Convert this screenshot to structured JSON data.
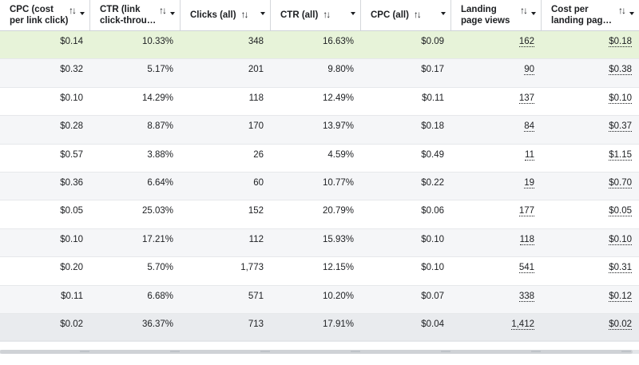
{
  "columns": [
    {
      "key": "cpc_link",
      "label": "CPC (cost per link click)",
      "width": 113,
      "dotted": false
    },
    {
      "key": "ctr_link",
      "label": "CTR (link click-throu…",
      "width": 113,
      "dotted": false
    },
    {
      "key": "clicks",
      "label": "Clicks (all)",
      "width": 113,
      "dotted": false
    },
    {
      "key": "ctr_all",
      "label": "CTR (all)",
      "width": 113,
      "dotted": false
    },
    {
      "key": "cpc_all",
      "label": "CPC (all)",
      "width": 113,
      "dotted": false
    },
    {
      "key": "lpv",
      "label": "Landing page views",
      "width": 113,
      "dotted": true
    },
    {
      "key": "cost_lpv",
      "label": "Cost per landing pag…",
      "width": 122,
      "dotted": true
    }
  ],
  "sort_icon": "sort-arrows-icon",
  "rows": [
    [
      "$0.14",
      "10.33%",
      "348",
      "16.63%",
      "$0.09",
      "162",
      "$0.18"
    ],
    [
      "$0.32",
      "5.17%",
      "201",
      "9.80%",
      "$0.17",
      "90",
      "$0.38"
    ],
    [
      "$0.10",
      "14.29%",
      "118",
      "12.49%",
      "$0.11",
      "137",
      "$0.10"
    ],
    [
      "$0.28",
      "8.87%",
      "170",
      "13.97%",
      "$0.18",
      "84",
      "$0.37"
    ],
    [
      "$0.57",
      "3.88%",
      "26",
      "4.59%",
      "$0.49",
      "11",
      "$1.15"
    ],
    [
      "$0.36",
      "6.64%",
      "60",
      "10.77%",
      "$0.22",
      "19",
      "$0.70"
    ],
    [
      "$0.05",
      "25.03%",
      "152",
      "20.79%",
      "$0.06",
      "177",
      "$0.05"
    ],
    [
      "$0.10",
      "17.21%",
      "112",
      "15.93%",
      "$0.10",
      "118",
      "$0.10"
    ],
    [
      "$0.20",
      "5.70%",
      "1,773",
      "12.15%",
      "$0.10",
      "541",
      "$0.31"
    ],
    [
      "$0.11",
      "6.68%",
      "571",
      "10.20%",
      "$0.07",
      "338",
      "$0.12"
    ],
    [
      "$0.02",
      "36.37%",
      "713",
      "17.91%",
      "$0.04",
      "1,412",
      "$0.02"
    ]
  ],
  "colors": {
    "highlight_row": "#e7f3d9",
    "alt_row": "#f5f6f8",
    "border": "#d4d7db",
    "text": "#1c1e21"
  }
}
